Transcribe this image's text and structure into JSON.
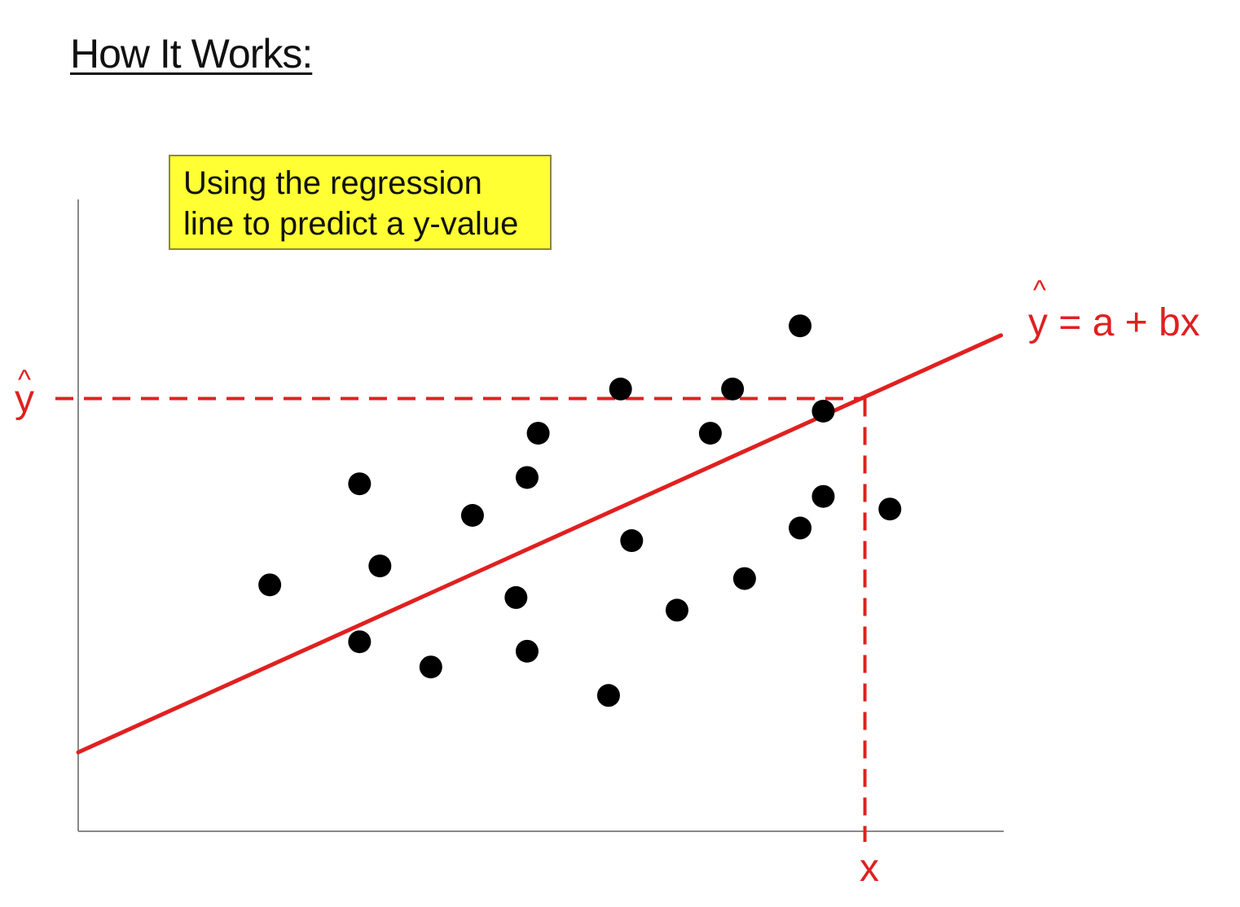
{
  "title": "How It Works:",
  "callout": {
    "line1": "Using the regression",
    "line2": "line to predict a y-value"
  },
  "labels": {
    "yhat_hat": "^",
    "yhat_letter": "y",
    "equation_hat": "^",
    "equation": "y = a + bx",
    "x_label": "x"
  },
  "colors": {
    "line": "#e02020",
    "points": "#000000",
    "axes": "#888888",
    "callout_bg": "#ffff33"
  },
  "chart_data": {
    "type": "scatter",
    "xlim": [
      0,
      10
    ],
    "ylim": [
      0,
      10
    ],
    "points": [
      {
        "x": 2.07,
        "y": 3.9
      },
      {
        "x": 3.04,
        "y": 5.5
      },
      {
        "x": 3.26,
        "y": 4.2
      },
      {
        "x": 3.04,
        "y": 3.0
      },
      {
        "x": 3.81,
        "y": 2.6
      },
      {
        "x": 4.26,
        "y": 5.0
      },
      {
        "x": 4.97,
        "y": 6.3
      },
      {
        "x": 4.85,
        "y": 5.6
      },
      {
        "x": 4.73,
        "y": 3.7
      },
      {
        "x": 4.85,
        "y": 2.85
      },
      {
        "x": 5.73,
        "y": 2.15
      },
      {
        "x": 5.86,
        "y": 7.0
      },
      {
        "x": 5.98,
        "y": 4.6
      },
      {
        "x": 6.47,
        "y": 3.5
      },
      {
        "x": 6.83,
        "y": 6.3
      },
      {
        "x": 7.07,
        "y": 7.0
      },
      {
        "x": 7.2,
        "y": 4.0
      },
      {
        "x": 7.8,
        "y": 8.0
      },
      {
        "x": 7.8,
        "y": 4.8
      },
      {
        "x": 8.05,
        "y": 6.65
      },
      {
        "x": 8.05,
        "y": 5.3
      },
      {
        "x": 8.77,
        "y": 5.1
      }
    ],
    "regression_line": {
      "x": [
        0,
        9.97
      ],
      "y": [
        1.25,
        7.85
      ]
    },
    "prediction": {
      "x": 8.5,
      "y": 6.85
    }
  }
}
